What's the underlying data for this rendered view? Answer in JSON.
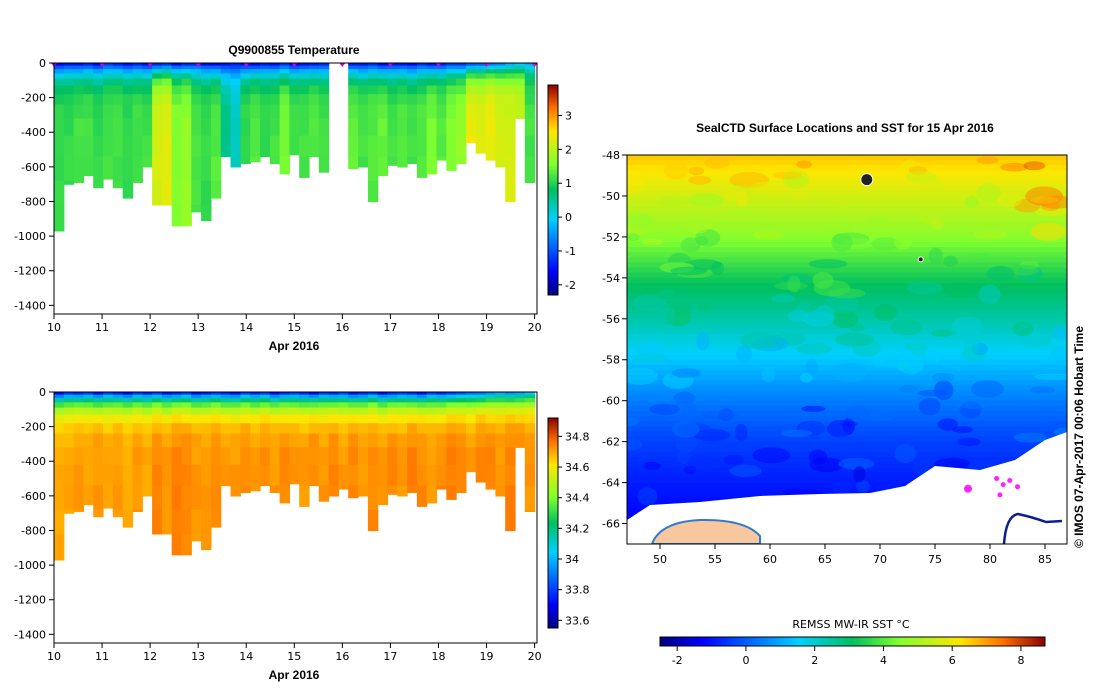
{
  "chart_data": [
    {
      "type": "heatmap",
      "title": "Q9900855  Temperature",
      "xlabel": "Apr 2016",
      "ylabel": "",
      "x_ticks": [
        "10",
        "11",
        "12",
        "13",
        "14",
        "15",
        "16",
        "17",
        "18",
        "19",
        "20"
      ],
      "y_ticks": [
        "0",
        "-200",
        "-400",
        "-600",
        "-800",
        "-1000",
        "-1200",
        "-1400"
      ],
      "xlim": [
        10,
        20.05
      ],
      "ylim": [
        -1450,
        0
      ],
      "colorbar_ticks": [
        "3",
        "2",
        "1",
        "0",
        "-1",
        "-2"
      ],
      "colorbar_range": [
        -2.3,
        3.9
      ],
      "profile_depths": [
        970,
        700,
        690,
        650,
        720,
        670,
        720,
        780,
        690,
        600,
        820,
        820,
        940,
        940,
        860,
        910,
        780,
        540,
        600,
        580,
        570,
        540,
        580,
        640,
        530,
        660,
        540,
        630,
        600,
        560,
        610,
        600,
        800,
        650,
        590,
        600,
        580,
        660,
        640,
        560,
        620,
        580,
        460,
        520,
        560,
        600,
        800,
        320,
        690
      ],
      "surface_values": [
        -1.9,
        -1.7,
        -1.8,
        -1.6,
        -1.9,
        -1.5,
        -1.6,
        -1.8,
        -1.7,
        -1.9,
        -1.8,
        -1.6,
        -1.9,
        -1.7,
        -1.6,
        -1.8,
        -1.9,
        -1.7,
        -1.6,
        -1.8,
        -1.9,
        -1.7,
        -1.8,
        -1.6,
        -1.9,
        -1.8,
        -1.7,
        -1.6,
        -1.8,
        -1.9,
        -1.7,
        -1.8,
        -1.6,
        -1.9,
        -1.7,
        -1.8,
        -1.9,
        -1.6,
        -1.8,
        -1.7,
        -1.5,
        -1.6,
        -1.3,
        -1.2,
        -1.0,
        -0.9,
        -0.6,
        -0.4,
        -0.5
      ],
      "deep_values": [
        1.1,
        1.1,
        1.2,
        1.2,
        1.1,
        1.2,
        1.2,
        1.1,
        1.2,
        1.2,
        2.2,
        2.3,
        1.6,
        1.7,
        1.2,
        1.1,
        1.3,
        0.6,
        0.3,
        1.1,
        1.3,
        1.1,
        1.2,
        1.5,
        1.2,
        1.2,
        1.3,
        1.2,
        1.3,
        1.5,
        1.4,
        1.2,
        1.3,
        1.4,
        1.2,
        1.3,
        1.2,
        1.3,
        1.5,
        1.3,
        1.6,
        1.7,
        2.4,
        2.3,
        2.4,
        2.2,
        2.2,
        2.1,
        1.2
      ],
      "gaps": [
        [
          15.8,
          16.05
        ]
      ],
      "float_markers": [
        10,
        11,
        12,
        13,
        14,
        15,
        16,
        17,
        18,
        19,
        20
      ]
    },
    {
      "type": "heatmap",
      "title": "",
      "xlabel": "Apr 2016",
      "ylabel": "",
      "x_ticks": [
        "10",
        "11",
        "12",
        "13",
        "14",
        "15",
        "16",
        "17",
        "18",
        "19",
        "20"
      ],
      "y_ticks": [
        "0",
        "-200",
        "-400",
        "-600",
        "-800",
        "-1000",
        "-1200",
        "-1400"
      ],
      "xlim": [
        10,
        20.05
      ],
      "ylim": [
        -1450,
        0
      ],
      "colorbar_ticks": [
        "34.8",
        "34.6",
        "34.4",
        "34.2",
        "34",
        "33.8",
        "33.6"
      ],
      "colorbar_range": [
        33.55,
        34.92
      ],
      "surface_values": [
        33.6,
        33.7,
        33.65,
        33.7,
        33.6,
        33.7,
        33.65,
        33.6,
        33.7,
        33.65,
        33.7,
        33.6,
        33.65,
        33.7,
        33.6,
        33.65,
        33.7,
        33.65,
        33.6,
        33.7,
        33.65,
        33.7,
        33.6,
        33.65,
        33.7,
        33.65,
        33.6,
        33.7,
        33.65,
        33.7,
        33.6,
        33.65,
        33.7,
        33.6,
        33.65,
        33.7,
        33.65,
        33.6,
        33.7,
        33.65,
        33.7,
        33.75,
        33.8,
        33.8,
        33.85,
        33.9,
        33.85,
        33.9,
        33.95
      ],
      "deep_values": [
        34.7,
        34.7,
        34.72,
        34.7,
        34.72,
        34.7,
        34.72,
        34.7,
        34.72,
        34.7,
        34.74,
        34.72,
        34.75,
        34.74,
        34.72,
        34.72,
        34.74,
        34.72,
        34.72,
        34.74,
        34.72,
        34.74,
        34.72,
        34.74,
        34.72,
        34.72,
        34.74,
        34.72,
        34.74,
        34.72,
        34.74,
        34.72,
        34.74,
        34.72,
        34.74,
        34.72,
        34.75,
        34.74,
        34.72,
        34.74,
        34.75,
        34.74,
        34.72,
        34.75,
        34.74,
        34.72,
        34.75,
        34.74,
        34.72
      ]
    },
    {
      "type": "heatmap",
      "title": "SealCTD Surface Locations and SST for 15 Apr 2016",
      "xlabel": "",
      "ylabel": "",
      "x_ticks": [
        "50",
        "55",
        "60",
        "65",
        "70",
        "75",
        "80",
        "85"
      ],
      "y_ticks": [
        "-48",
        "-50",
        "-52",
        "-54",
        "-56",
        "-58",
        "-60",
        "-62",
        "-64",
        "-66"
      ],
      "xlim": [
        47,
        87
      ],
      "ylim": [
        -67,
        -48
      ],
      "colorbar_label": "REMSS MW-IR SST °C",
      "colorbar_ticks": [
        "-2",
        "0",
        "2",
        "4",
        "6",
        "8"
      ],
      "colorbar_range": [
        -2.5,
        8.7
      ],
      "sst_band_lats": [
        -48,
        -50,
        -52,
        -54,
        -56,
        -58,
        -60,
        -62,
        -64,
        -66
      ],
      "sst_band_values": [
        6.6,
        5.6,
        4.6,
        3.3,
        2.4,
        1.4,
        0.4,
        -0.4,
        -0.9,
        -1.3
      ],
      "seal_locations": [
        [
          68.8,
          -49.2
        ],
        [
          73.7,
          -53.1
        ],
        [
          78.0,
          -64.3
        ],
        [
          80.6,
          -63.8
        ],
        [
          81.2,
          -64.1
        ],
        [
          81.8,
          -63.9
        ],
        [
          82.5,
          -64.2
        ],
        [
          80.9,
          -64.6
        ]
      ]
    }
  ],
  "watermark": "© IMOS 07-Apr-2017 00:06 Hobart Time"
}
